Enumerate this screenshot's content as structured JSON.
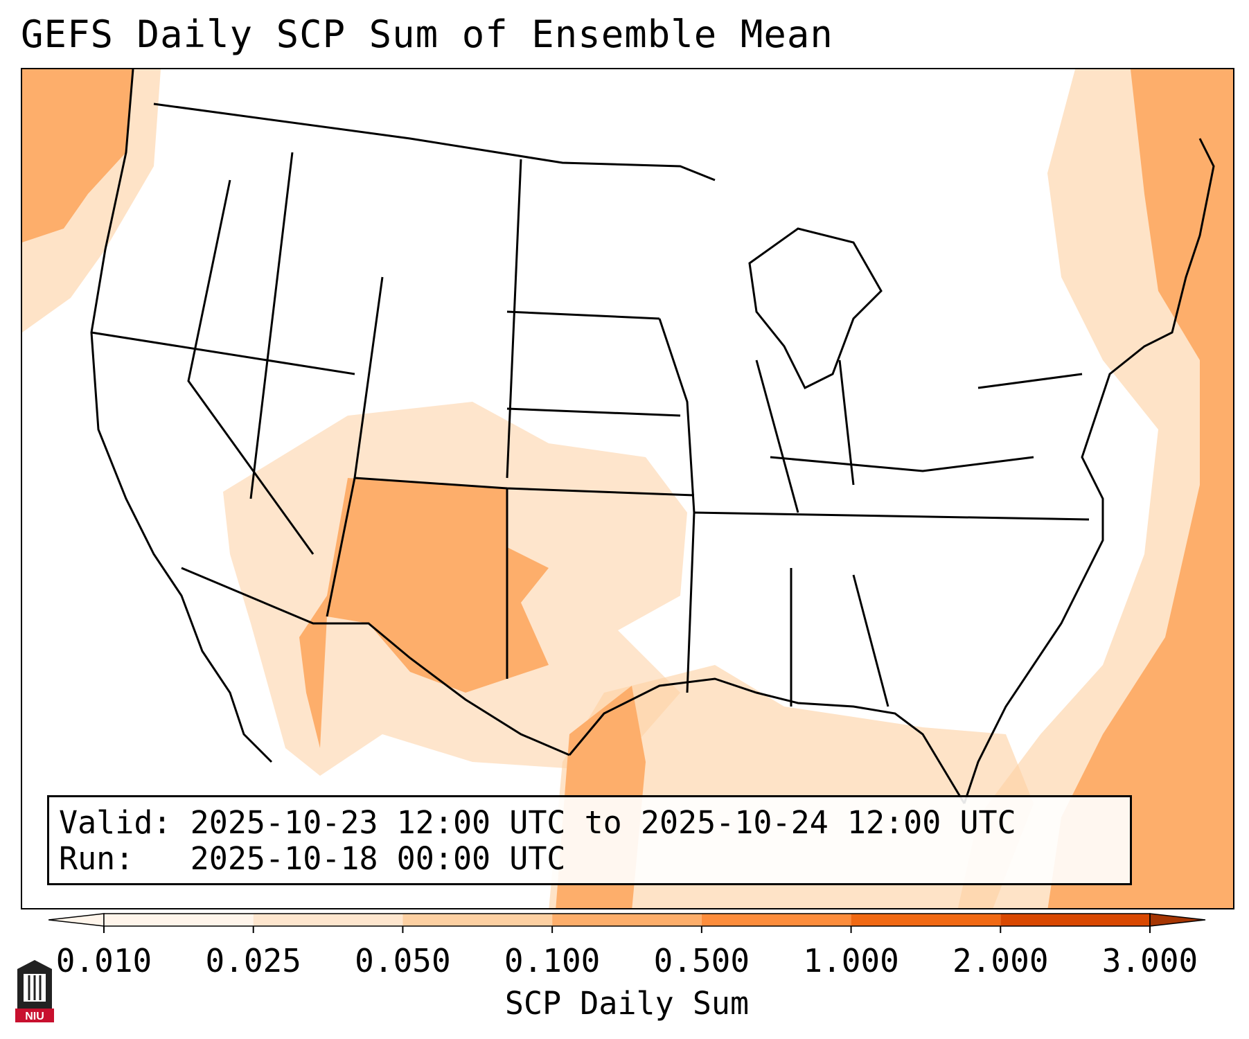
{
  "title": "GEFS Daily SCP Sum of Ensemble Mean",
  "info": {
    "valid_label": "Valid:",
    "valid_value": "2025-10-23 12:00 UTC to 2025-10-24 12:00 UTC",
    "run_label": "Run:",
    "run_value": "2025-10-18 00:00 UTC"
  },
  "colorbar": {
    "label": "SCP Daily Sum",
    "ticks": [
      "0.010",
      "0.025",
      "0.050",
      "0.100",
      "0.500",
      "1.000",
      "2.000",
      "3.000"
    ],
    "colors": [
      "#fff5eb",
      "#fee6ce",
      "#fdd0a2",
      "#fdae6b",
      "#fd8d3c",
      "#f16913",
      "#d94801",
      "#a63603"
    ]
  },
  "map_data": {
    "field": "SCP Daily Sum",
    "region": "Continental United States",
    "highlight_regions": [
      {
        "name": "New Mexico / West Texas",
        "level": "0.100"
      },
      {
        "name": "Western Gulf of Mexico",
        "level": "0.100"
      },
      {
        "name": "Western Atlantic",
        "level": "0.100"
      },
      {
        "name": "Pacific off Washington",
        "level": "0.100"
      },
      {
        "name": "Southern Plains",
        "level": "0.025"
      }
    ]
  },
  "logo": {
    "text": "NIU"
  }
}
